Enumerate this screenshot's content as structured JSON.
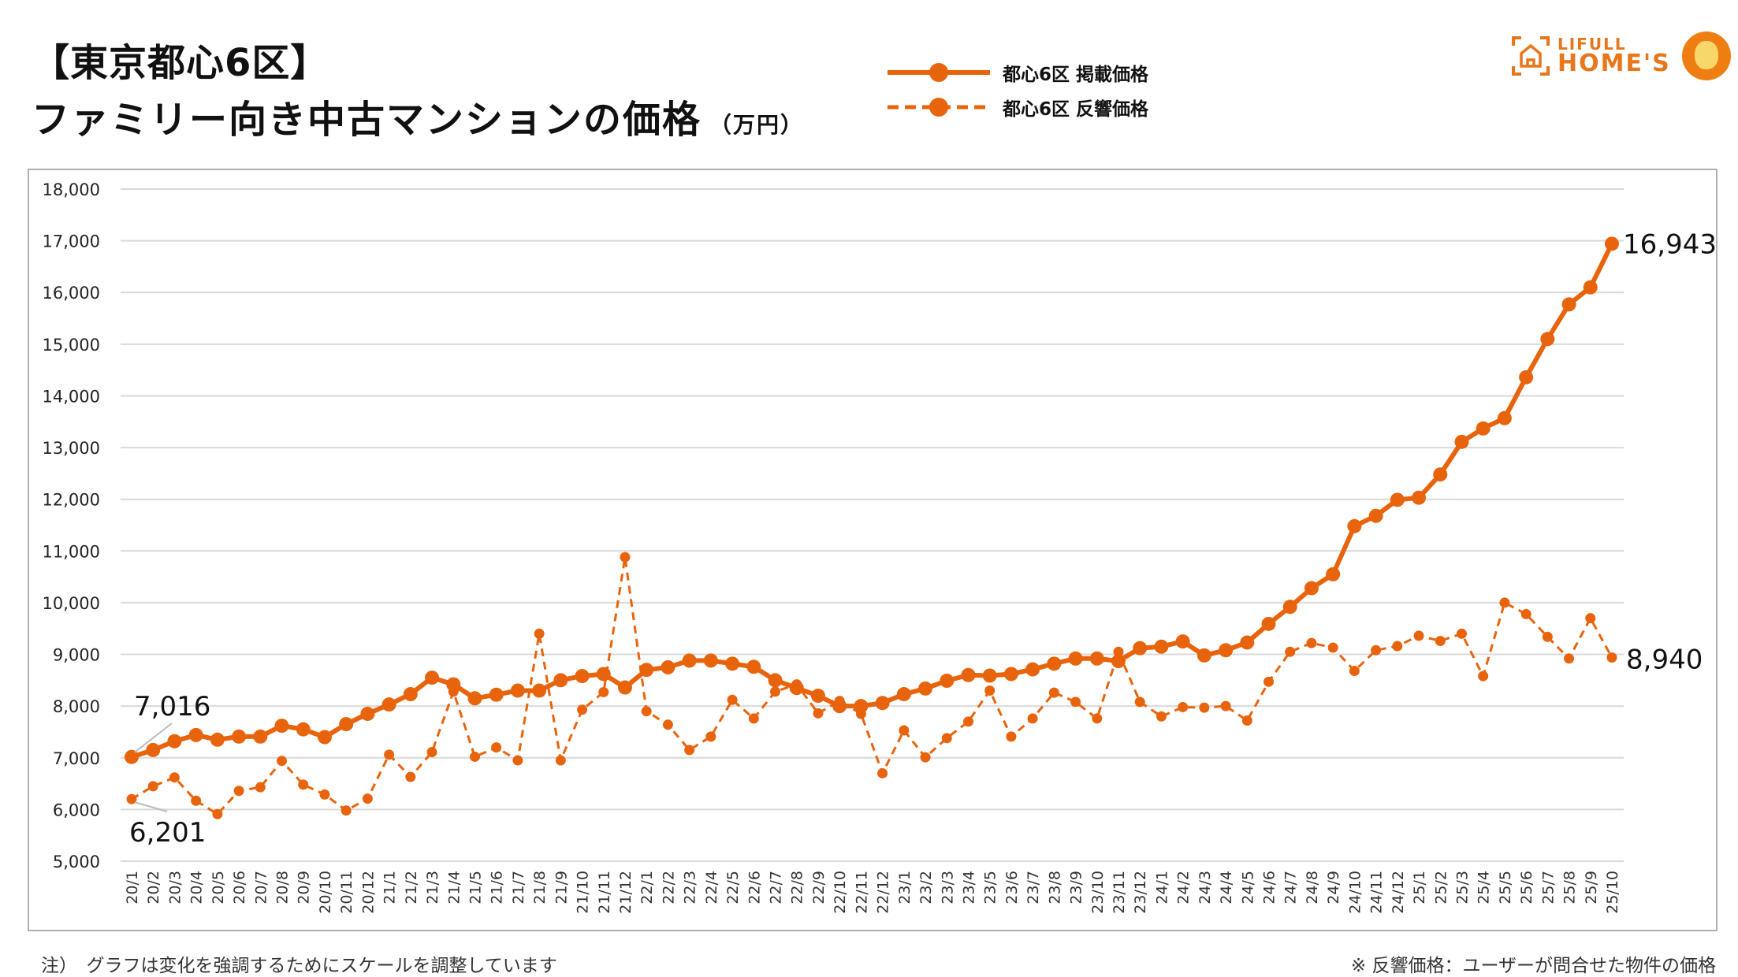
{
  "header": {
    "title_line1": "【東京都心6区】",
    "title_line2": "ファミリー向き中古マンションの価格",
    "unit": "（万円）"
  },
  "logo": {
    "line1": "LIFULL",
    "line2": "HOME'S"
  },
  "footer": {
    "note_left": "注）　グラフは変化を強調するためにスケールを調整しています",
    "note_right": "※ 反響価格：ユーザーが問合せた物件の価格"
  },
  "colors": {
    "series": "#e8640c",
    "grid": "#d9d9d9",
    "frame": "#b0b0b0"
  },
  "chart_data": {
    "type": "line",
    "title": "【東京都心6区】ファミリー向き中古マンションの価格（万円）",
    "ylabel": "万円",
    "ylim": [
      5000,
      18000
    ],
    "yticks": [
      5000,
      6000,
      7000,
      8000,
      9000,
      10000,
      11000,
      12000,
      13000,
      14000,
      15000,
      16000,
      17000,
      18000
    ],
    "ytick_labels": [
      "5,000",
      "6,000",
      "7,000",
      "8,000",
      "9,000",
      "10,000",
      "11,000",
      "12,000",
      "13,000",
      "14,000",
      "15,000",
      "16,000",
      "17,000",
      "18,000"
    ],
    "grid": true,
    "legend_position": "top-center",
    "categories": [
      "20/1",
      "20/2",
      "20/3",
      "20/4",
      "20/5",
      "20/6",
      "20/7",
      "20/8",
      "20/9",
      "20/10",
      "20/11",
      "20/12",
      "21/1",
      "21/2",
      "21/3",
      "21/4",
      "21/5",
      "21/6",
      "21/7",
      "21/8",
      "21/9",
      "21/10",
      "21/11",
      "21/12",
      "22/1",
      "22/2",
      "22/3",
      "22/4",
      "22/5",
      "22/6",
      "22/7",
      "22/8",
      "22/9",
      "22/10",
      "22/11",
      "22/12",
      "23/1",
      "23/2",
      "23/3",
      "23/4",
      "23/5",
      "23/6",
      "23/7",
      "23/8",
      "23/9",
      "23/10",
      "23/11",
      "23/12",
      "24/1",
      "24/2",
      "24/3",
      "24/4",
      "24/5",
      "24/6",
      "24/7",
      "24/8",
      "24/9",
      "24/10",
      "24/11",
      "24/12",
      "25/1",
      "25/2",
      "25/3",
      "25/4",
      "25/5",
      "25/6",
      "25/7",
      "25/8",
      "25/9",
      "25/10"
    ],
    "series": [
      {
        "name": "都心6区 掲載価格",
        "style": "solid",
        "values": [
          7016,
          7150,
          7320,
          7440,
          7350,
          7410,
          7410,
          7620,
          7550,
          7400,
          7650,
          7850,
          8030,
          8230,
          8550,
          8420,
          8150,
          8220,
          8300,
          8300,
          8500,
          8580,
          8620,
          8360,
          8700,
          8750,
          8880,
          8880,
          8820,
          8760,
          8500,
          8350,
          8200,
          8000,
          8000,
          8060,
          8230,
          8340,
          8490,
          8600,
          8590,
          8620,
          8710,
          8820,
          8920,
          8920,
          8870,
          9120,
          9150,
          9250,
          8980,
          9080,
          9230,
          9590,
          9920,
          10280,
          10550,
          11480,
          11680,
          11990,
          12030,
          12480,
          13110,
          13370,
          13570,
          14360,
          15100,
          15770,
          16100,
          16943
        ]
      },
      {
        "name": "都心6区 反響価格",
        "style": "dashed",
        "values": [
          6201,
          6450,
          6620,
          6170,
          5910,
          6360,
          6430,
          6940,
          6480,
          6290,
          5980,
          6210,
          7060,
          6630,
          7110,
          8280,
          7020,
          7200,
          6950,
          9400,
          6950,
          7930,
          8270,
          10880,
          7900,
          7640,
          7150,
          7410,
          8120,
          7760,
          8280,
          8420,
          7860,
          8100,
          7850,
          6700,
          7530,
          7010,
          7380,
          7700,
          8300,
          7410,
          7760,
          8260,
          8080,
          7760,
          9050,
          8080,
          7800,
          7980,
          7970,
          8000,
          7720,
          8470,
          9050,
          9220,
          9130,
          8680,
          9080,
          9160,
          9360,
          9260,
          9400,
          8580,
          10000,
          9780,
          9340,
          8920,
          9700,
          8940
        ]
      }
    ],
    "annotations": [
      {
        "series": 0,
        "point": "20/1",
        "text": "7,016"
      },
      {
        "series": 1,
        "point": "20/1",
        "text": "6,201"
      },
      {
        "series": 0,
        "point": "25/10",
        "text": "16,943"
      },
      {
        "series": 1,
        "point": "25/10",
        "text": "8,940"
      }
    ]
  }
}
